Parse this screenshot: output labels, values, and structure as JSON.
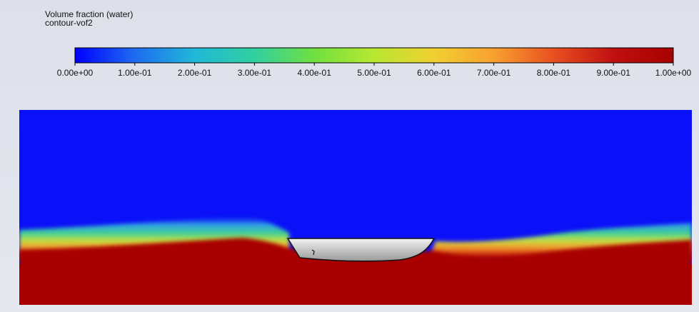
{
  "header": {
    "title": "Volume fraction (water)",
    "subtitle": "contour-vof2"
  },
  "colorbar": {
    "lim": [
      0,
      1
    ],
    "colors": [
      "#0000ff",
      "#1e6cf0",
      "#20b8d8",
      "#30d0a0",
      "#70e040",
      "#b8e830",
      "#f0d030",
      "#f8a030",
      "#e85020",
      "#c01010",
      "#a80000"
    ],
    "ticks": [
      {
        "value": 0,
        "label": "0.00e+00"
      },
      {
        "value": 0.1,
        "label": "1.00e-01"
      },
      {
        "value": 0.2,
        "label": "2.00e-01"
      },
      {
        "value": 0.3,
        "label": "3.00e-01"
      },
      {
        "value": 0.4,
        "label": "4.00e-01"
      },
      {
        "value": 0.5,
        "label": "5.00e-01"
      },
      {
        "value": 0.6,
        "label": "6.00e-01"
      },
      {
        "value": 0.7,
        "label": "7.00e-01"
      },
      {
        "value": 0.8,
        "label": "8.00e-01"
      },
      {
        "value": 0.9,
        "label": "9.00e-01"
      },
      {
        "value": 1,
        "label": "1.00e+00"
      }
    ]
  }
}
